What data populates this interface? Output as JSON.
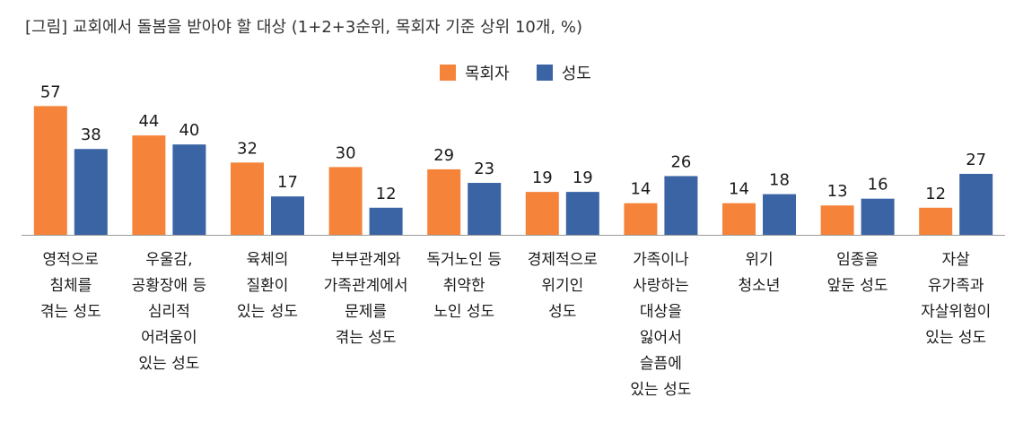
{
  "chart_data": {
    "type": "bar",
    "title": "[그림] 교회에서 돌봄을 받아야 할 대상 (1+2+3순위, 목회자 기준 상위 10개, %)",
    "categories": [
      [
        "영적으로",
        "침체를",
        "겪는 성도"
      ],
      [
        "우울감,",
        "공황장애 등",
        "심리적",
        "어려움이",
        "있는 성도"
      ],
      [
        "육체의",
        "질환이",
        "있는 성도"
      ],
      [
        "부부관계와",
        "가족관계에서",
        "문제를",
        "겪는 성도"
      ],
      [
        "독거노인 등",
        "취약한",
        "노인 성도"
      ],
      [
        "경제적으로",
        "위기인",
        "성도"
      ],
      [
        "가족이나",
        "사랑하는",
        "대상을",
        "잃어서",
        "슬픔에",
        "있는 성도"
      ],
      [
        "위기",
        "청소년"
      ],
      [
        "임종을",
        "앞둔 성도"
      ],
      [
        "자살",
        "유가족과",
        "자살위험이",
        "있는 성도"
      ]
    ],
    "series": [
      {
        "name": "목회자",
        "color": "#F5843A",
        "values": [
          57,
          44,
          32,
          30,
          29,
          19,
          14,
          14,
          13,
          12
        ]
      },
      {
        "name": "성도",
        "color": "#3A64A4",
        "values": [
          38,
          40,
          17,
          12,
          23,
          19,
          26,
          18,
          16,
          27
        ]
      }
    ],
    "ylim": [
      0,
      60
    ],
    "grid": false,
    "legend_position": "top-center",
    "data_labels": true
  }
}
